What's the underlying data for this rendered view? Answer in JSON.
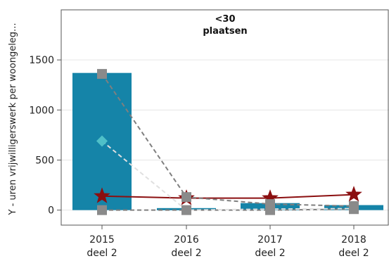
{
  "chart_data": {
    "type": "bar",
    "title": [
      "<30",
      "plaatsen"
    ],
    "ylabel": "Y - uren vrijwilligerswerk per woongeleg...",
    "xlabel": "",
    "categories": [
      [
        "2015",
        "deel 2"
      ],
      [
        "2016",
        "deel 2"
      ],
      [
        "2017",
        "deel 2"
      ],
      [
        "2018",
        "deel 2"
      ]
    ],
    "ylim": [
      -150,
      2000
    ],
    "yticks": [
      0,
      500,
      1000,
      1500
    ],
    "grid": true,
    "bars": {
      "values": [
        1370,
        20,
        70,
        50
      ],
      "color": "#1584a8"
    },
    "series": [
      {
        "marker": "star",
        "line": "solid",
        "color": "#8b0f10",
        "values": [
          140,
          120,
          120,
          155
        ]
      },
      {
        "marker": "square",
        "line": "dashed",
        "color": "#7f7f7f",
        "values": [
          1360,
          130,
          60,
          40
        ]
      },
      {
        "marker": "square",
        "line": "dashed",
        "color": "#7f7f7f",
        "values": [
          0,
          0,
          0,
          10
        ]
      },
      {
        "marker": "diamond",
        "line": "dashed",
        "color": "#e0e0e0",
        "values": [
          690,
          0,
          10,
          15
        ]
      }
    ]
  }
}
